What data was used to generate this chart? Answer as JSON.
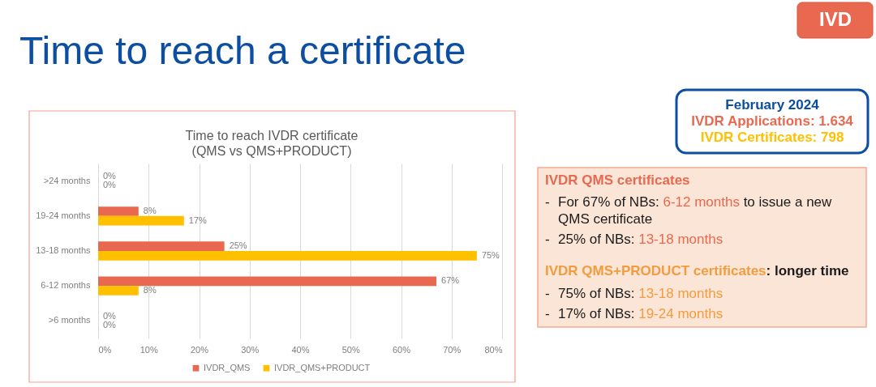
{
  "chart_data": {
    "type": "bar",
    "orientation": "horizontal",
    "title": "Time to reach a certificate",
    "subtitle": "Time to reach IVDR certificate\n(QMS vs QMS+PRODUCT)",
    "categories": [
      ">24 months",
      "19-24 months",
      "13-18 months",
      "6-12 months",
      ">6 months"
    ],
    "series": [
      {
        "name": "IVDR_QMS",
        "color": "#e8694f",
        "values": [
          0,
          8,
          25,
          67,
          0
        ],
        "value_labels": [
          "0%",
          "8%",
          "25%",
          "67%",
          "0%"
        ]
      },
      {
        "name": "IVDR_QMS+PRODUCT",
        "color": "#ffc000",
        "values": [
          0,
          17,
          75,
          8,
          0
        ],
        "value_labels": [
          "0%",
          "17%",
          "75%",
          "8%",
          "0%"
        ]
      }
    ],
    "xlim": [
      0,
      80
    ],
    "xticks": [
      {
        "value": 0,
        "label": "0%"
      },
      {
        "value": 10,
        "label": "10%"
      },
      {
        "value": 20,
        "label": "20%"
      },
      {
        "value": 30,
        "label": "30%"
      },
      {
        "value": 40,
        "label": "40%"
      },
      {
        "value": 50,
        "label": "50%"
      },
      {
        "value": 60,
        "label": "60%"
      },
      {
        "value": 70,
        "label": "70%"
      },
      {
        "value": 80,
        "label": "80%"
      }
    ],
    "grid": "x",
    "legend": "bottom",
    "annotations": [
      "IVD",
      "February 2024",
      "IVDR Applications: 1.634",
      "IVDR Certificates: 798",
      "IVDR QMS certificates",
      "-",
      "For 67% of NBs:",
      "6-12 months",
      "to issue a new",
      "QMS certificate",
      "-",
      "25% of NBs:",
      "13-18 months",
      "IVDR QMS+PRODUCT certificates",
      ": longer time",
      "-",
      "75% of NBs:",
      "13-18 months",
      "-",
      "17% of NBs:",
      "19-24 months"
    ]
  }
}
